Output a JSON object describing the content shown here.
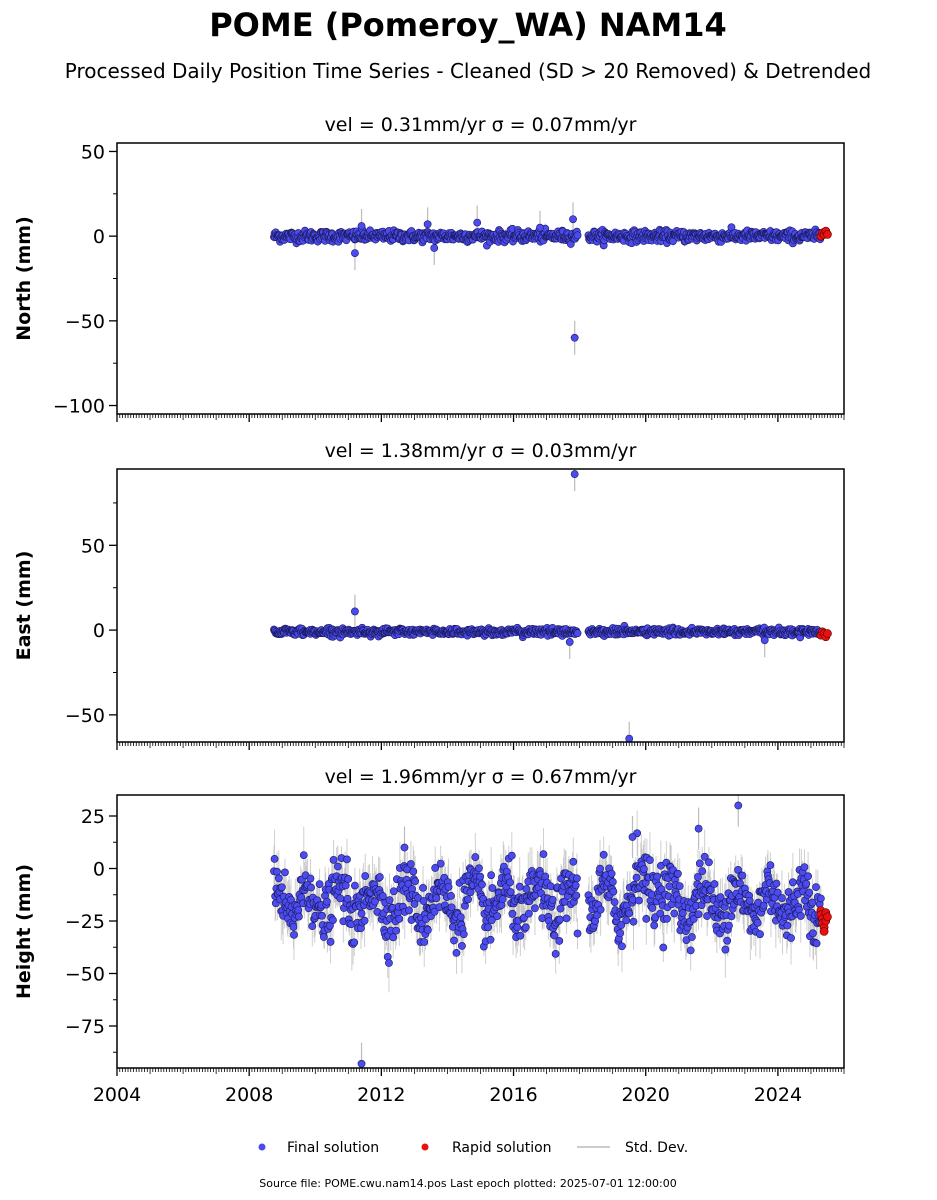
{
  "title": "POME (Pomeroy_WA) NAM14",
  "subtitle": "Processed Daily Position Time Series - Cleaned (SD > 20 Removed) & Detrended",
  "footer": "Source file: POME.cwu.nam14.pos  Last epoch plotted: 2025-07-01 12:00:00",
  "colors": {
    "final": "#4b4bf0",
    "rapid": "#e81010",
    "stddev": "#bbbbbb"
  },
  "legend": {
    "final": "Final solution",
    "rapid": "Rapid solution",
    "stddev": "Std. Dev."
  },
  "chart_data": [
    {
      "type": "scatter",
      "title_vel": "vel = 0.31mm/yr",
      "title_sigma": "σ = 0.07mm/yr",
      "ylabel": "North (mm)",
      "xlim": [
        2004,
        2026
      ],
      "ylim": [
        -105,
        55
      ],
      "yticks": [
        50,
        0,
        -50,
        -100
      ],
      "ytick_labels": [
        "50",
        "0",
        "−50",
        "−100"
      ],
      "final_span": [
        2008.75,
        2025.3
      ],
      "rapid_span": [
        2025.3,
        2025.5
      ],
      "final_level": 0,
      "final_noise_sd": 1.6,
      "rapid_level": 1,
      "series": [
        {
          "name": "Final solution",
          "outliers": [
            [
              2011.2,
              -10
            ],
            [
              2011.4,
              6
            ],
            [
              2013.4,
              7
            ],
            [
              2013.6,
              -7
            ],
            [
              2014.9,
              8
            ],
            [
              2016.8,
              5
            ],
            [
              2017.8,
              10
            ],
            [
              2017.85,
              -60
            ]
          ]
        },
        {
          "name": "Rapid solution",
          "x": [
            2025.3,
            2025.35,
            2025.4,
            2025.45,
            2025.5
          ],
          "y": [
            0,
            2,
            1,
            3,
            1
          ]
        }
      ]
    },
    {
      "type": "scatter",
      "title_vel": "vel = 1.38mm/yr",
      "title_sigma": "σ = 0.03mm/yr",
      "ylabel": "East (mm)",
      "xlim": [
        2004,
        2026
      ],
      "ylim": [
        -66,
        95
      ],
      "yticks": [
        50,
        0,
        -50
      ],
      "ytick_labels": [
        "50",
        "0",
        "−50"
      ],
      "final_span": [
        2008.75,
        2025.3
      ],
      "rapid_span": [
        2025.3,
        2025.5
      ],
      "final_level": -1,
      "final_noise_sd": 1.0,
      "rapid_level": -2,
      "series": [
        {
          "name": "Final solution",
          "outliers": [
            [
              2011.2,
              11
            ],
            [
              2017.7,
              -7
            ],
            [
              2017.85,
              92
            ],
            [
              2019.5,
              -64
            ],
            [
              2023.6,
              -6
            ]
          ]
        },
        {
          "name": "Rapid solution",
          "x": [
            2025.3,
            2025.35,
            2025.4,
            2025.45,
            2025.5
          ],
          "y": [
            -3,
            -1,
            -2,
            -4,
            -2
          ]
        }
      ]
    },
    {
      "type": "scatter",
      "title_vel": "vel = 1.96mm/yr",
      "title_sigma": "σ = 0.67mm/yr",
      "ylabel": "Height (mm)",
      "xlim": [
        2004,
        2026
      ],
      "ylim": [
        -95,
        35
      ],
      "yticks": [
        25,
        0,
        -25,
        -50,
        -75
      ],
      "ytick_labels": [
        "25",
        "0",
        "−25",
        "−50",
        "−75"
      ],
      "xticks": [
        2004,
        2008,
        2012,
        2016,
        2020,
        2024
      ],
      "final_span": [
        2008.75,
        2025.3
      ],
      "rapid_span": [
        2025.3,
        2025.5
      ],
      "final_level": -16,
      "final_noise_sd": 7,
      "rapid_level": -26,
      "series": [
        {
          "name": "Final solution",
          "outliers": [
            [
              2011.4,
              -93
            ],
            [
              2022.8,
              30
            ],
            [
              2021.6,
              19
            ],
            [
              2012.7,
              10
            ],
            [
              2019.6,
              15
            ]
          ]
        },
        {
          "name": "Rapid solution",
          "x": [
            2025.3,
            2025.3,
            2025.35,
            2025.35,
            2025.4,
            2025.4,
            2025.45,
            2025.45,
            2025.5
          ],
          "y": [
            -20,
            -22,
            -24,
            -26,
            -28,
            -30,
            -21,
            -25,
            -23
          ]
        }
      ]
    }
  ]
}
